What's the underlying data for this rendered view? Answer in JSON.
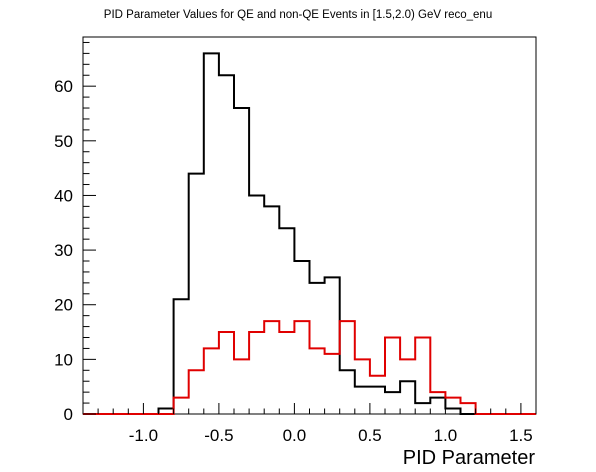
{
  "chart_data": {
    "type": "histogram",
    "title": "PID Parameter Values for QE and non-QE Events in [1.5,2.0) GeV reco_enu",
    "xlabel": "PID Parameter",
    "ylabel": "",
    "xlim": [
      -1.4,
      1.6
    ],
    "ylim": [
      0,
      69
    ],
    "bin_width": 0.1,
    "x_tick_values": [
      -1.0,
      -0.5,
      0.0,
      0.5,
      1.0,
      1.5
    ],
    "x_tick_labels": [
      "-1.0",
      "-0.5",
      "0.0",
      "0.5",
      "1.0",
      "1.5"
    ],
    "y_tick_values": [
      0,
      10,
      20,
      30,
      40,
      50,
      60
    ],
    "y_tick_labels": [
      "0",
      "10",
      "20",
      "30",
      "40",
      "50",
      "60"
    ],
    "grid": false,
    "series": [
      {
        "color": "#000000",
        "bin_edges": [
          -0.9,
          -0.8,
          -0.7,
          -0.6,
          -0.5,
          -0.4,
          -0.3,
          -0.2,
          -0.1,
          0.0,
          0.1,
          0.2,
          0.3,
          0.4,
          0.5,
          0.6,
          0.7,
          0.8,
          0.9,
          1.0,
          1.1
        ],
        "values": [
          1,
          21,
          44,
          66,
          62,
          56,
          40,
          38,
          34,
          28,
          24,
          25,
          8,
          5,
          5,
          4,
          6,
          2,
          3,
          1
        ]
      },
      {
        "color": "#e00000",
        "bin_edges": [
          -0.8,
          -0.7,
          -0.6,
          -0.5,
          -0.4,
          -0.3,
          -0.2,
          -0.1,
          0.0,
          0.1,
          0.2,
          0.3,
          0.4,
          0.5,
          0.6,
          0.7,
          0.8,
          0.9,
          1.0,
          1.1,
          1.2,
          1.3
        ],
        "values": [
          3,
          8,
          12,
          15,
          10,
          15,
          17,
          15,
          17,
          12,
          11,
          17,
          10,
          7,
          14,
          10,
          14,
          4,
          3,
          2,
          0
        ]
      }
    ]
  }
}
